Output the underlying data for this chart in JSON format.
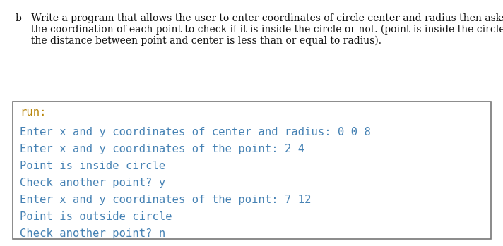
{
  "bg_color": "#ffffff",
  "header_lines": [
    "b-  Write a program that allows the user to enter coordinates of circle center and radius then asks for",
    "     the coordination of each point to check if it is inside the circle or not. (point is inside the circle if",
    "     the distance between point and center is less than or equal to radius)."
  ],
  "run_label": "run:",
  "run_label_color": "#b8860b",
  "console_lines": [
    {
      "text": "Enter x and y coordinates of center and radius: 0 0 8"
    },
    {
      "text": "Enter x and y coordinates of the point: 2 4"
    },
    {
      "text": "Point is inside circle"
    },
    {
      "text": "Check another point? y"
    },
    {
      "text": "Enter x and y coordinates of the point: 7 12"
    },
    {
      "text": "Point is outside circle"
    },
    {
      "text": "Check another point? n"
    }
  ],
  "console_color": "#4682b4",
  "box_border_color": "#777777",
  "header_fontsize": 10.0,
  "console_fontsize": 11.2,
  "run_fontsize": 11.2,
  "header_color": "#111111"
}
